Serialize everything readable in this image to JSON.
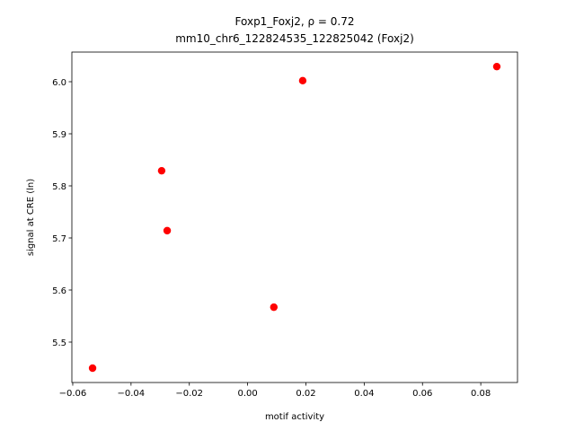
{
  "chart_data": {
    "type": "scatter",
    "title": "Foxp1_Foxj2, ρ = 0.72",
    "subtitle": "mm10_chr6_122824535_122825042 (Foxj2)",
    "x_label": "motif activity",
    "y_label": "signal at CRE (ln)",
    "color": "#ff0000",
    "series": [
      {
        "x": [
          -0.0532,
          -0.0295,
          -0.0276,
          0.009,
          0.0189,
          0.0855
        ],
        "values": [
          5.45,
          5.829,
          5.714,
          5.567,
          6.002,
          6.029
        ]
      }
    ],
    "xlim": [
      -0.0603,
      0.0926
    ],
    "ylim": [
      5.4224,
      6.0569
    ],
    "xticks": [
      {
        "value": -0.06,
        "label": "−0.06"
      },
      {
        "value": -0.04,
        "label": "−0.04"
      },
      {
        "value": -0.02,
        "label": "−0.02"
      },
      {
        "value": 0,
        "label": "0.00"
      },
      0.02,
      0.04,
      0.06,
      0.08
    ],
    "yticks": [
      5.5,
      5.6,
      5.7,
      5.8,
      5.9,
      {
        "value": 6.0,
        "label": "6.0"
      }
    ]
  }
}
